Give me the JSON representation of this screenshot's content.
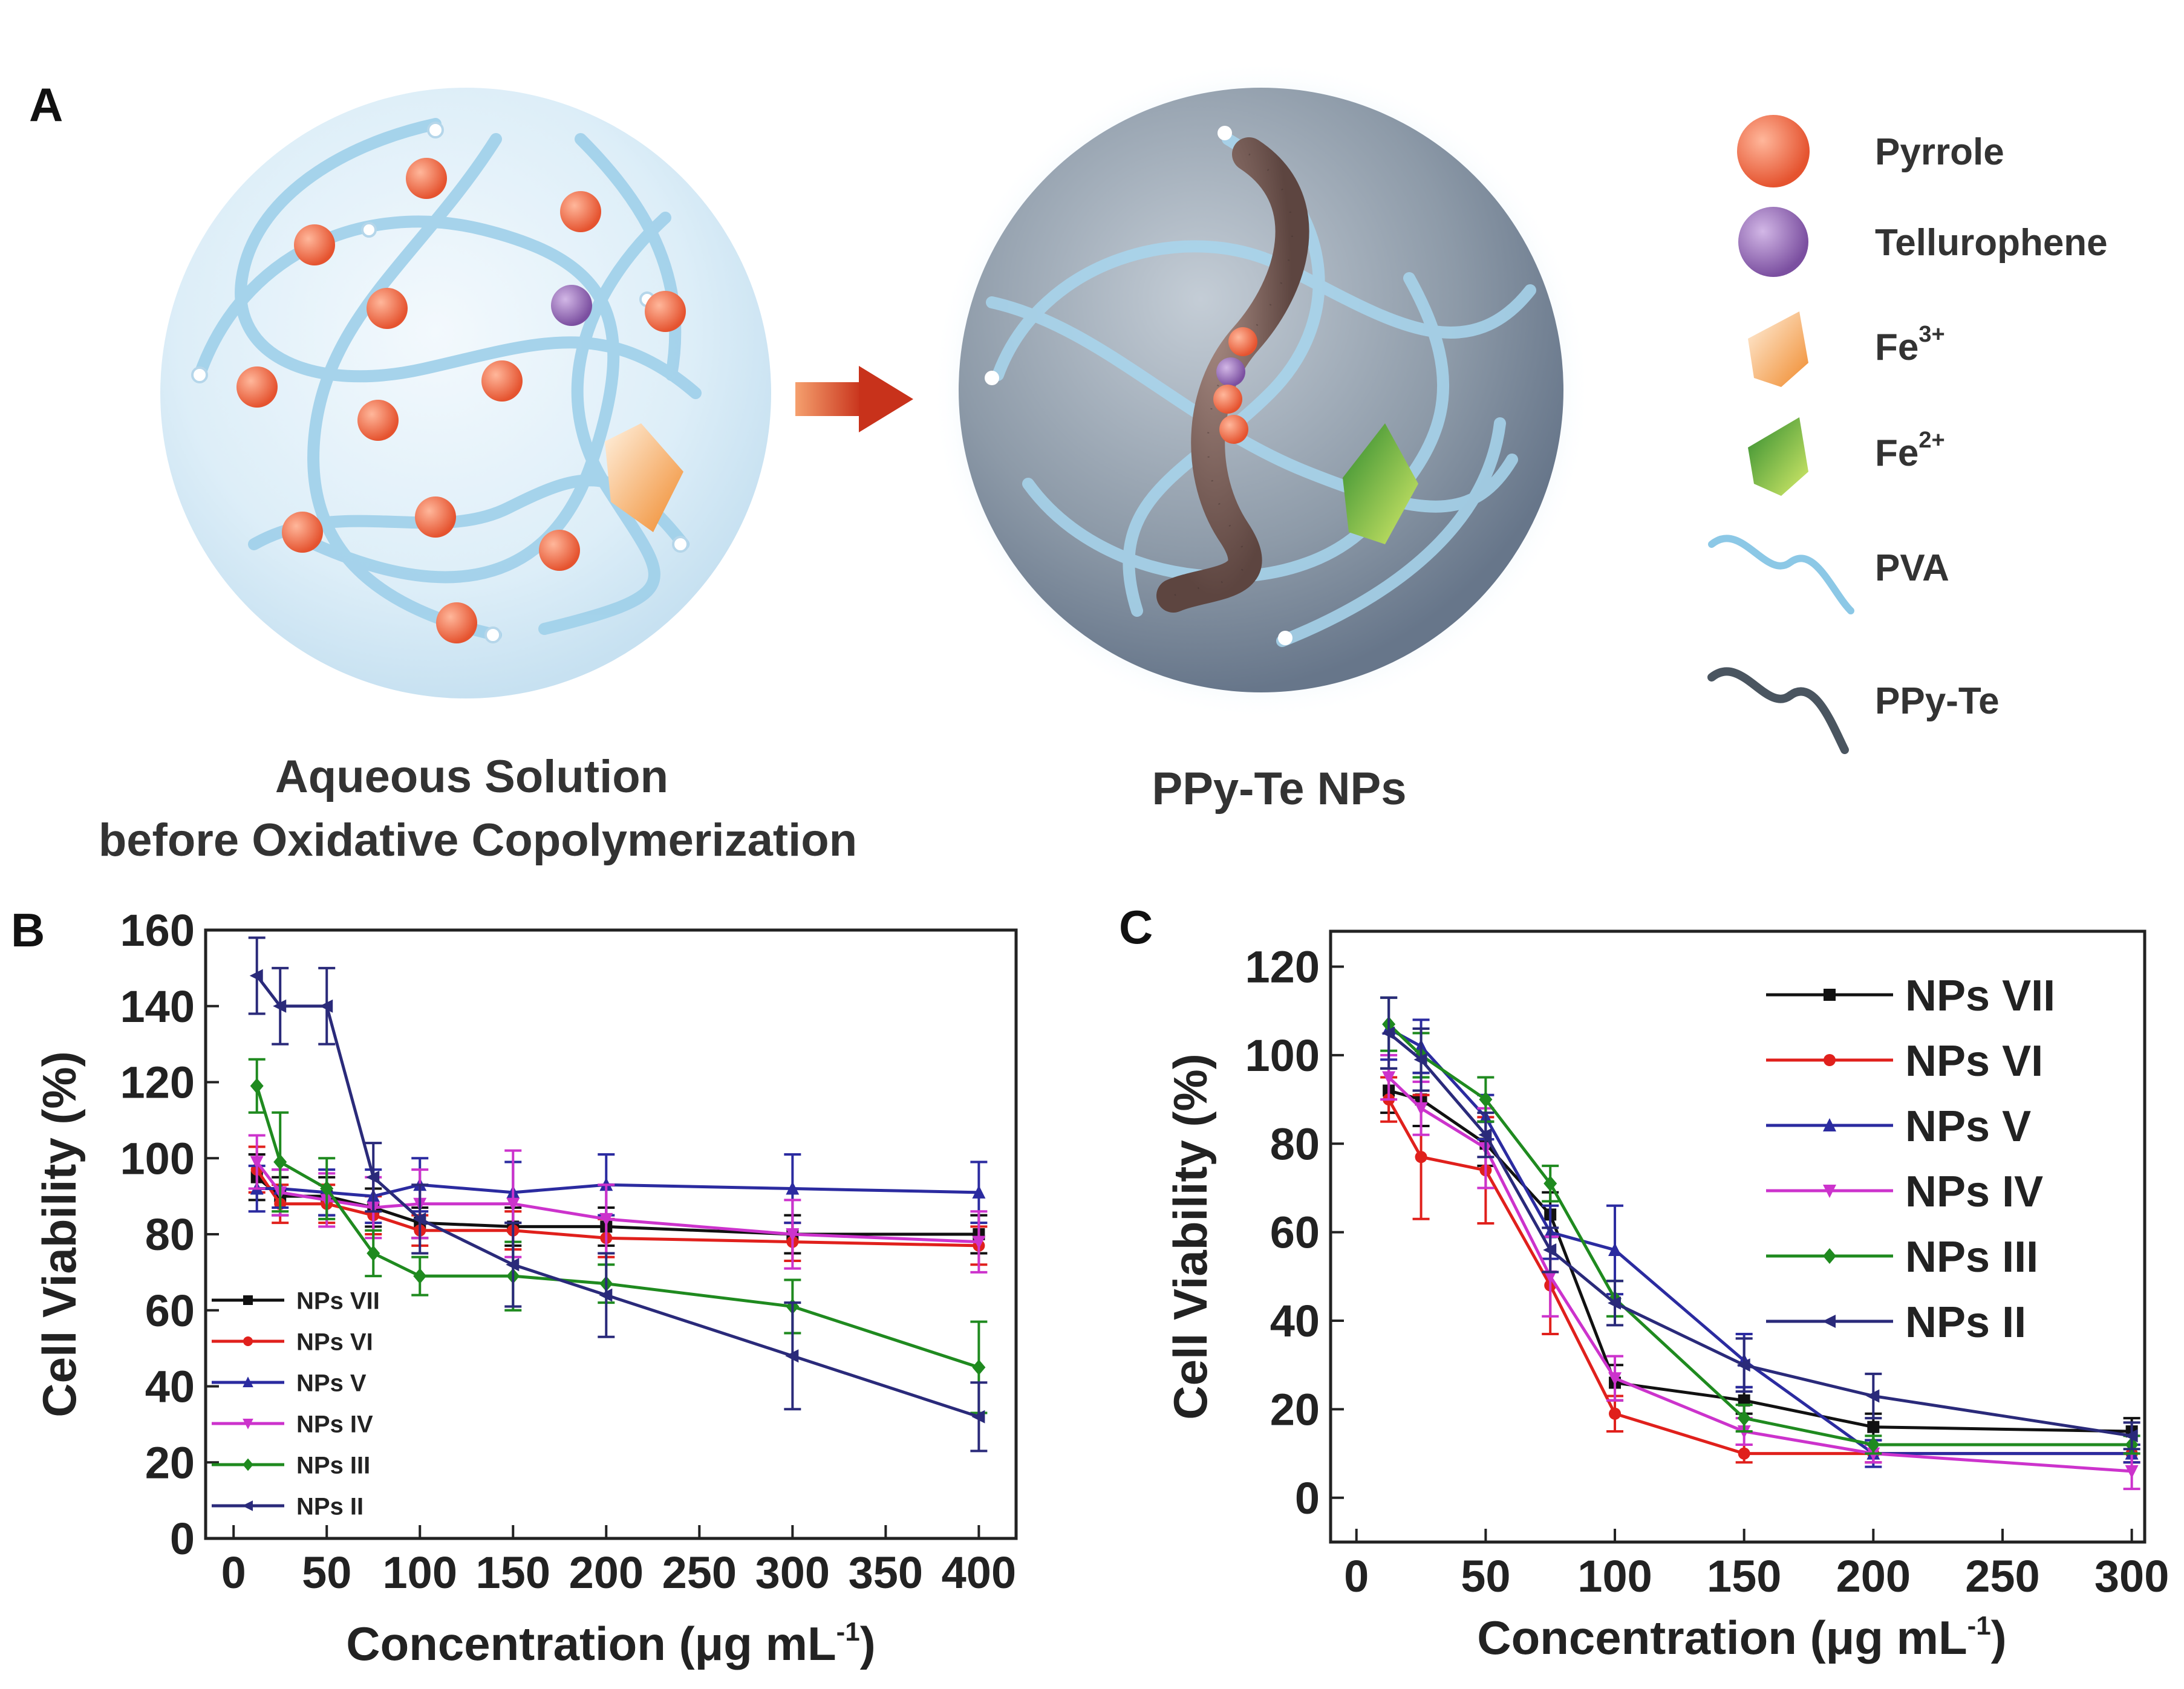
{
  "panels": {
    "a": "A",
    "b": "B",
    "c": "C"
  },
  "schematic": {
    "left_caption_line1": "Aqueous Solution",
    "left_caption_line2": "before Oxidative Copolymerization",
    "right_caption": "PPy-Te NPs",
    "legend": [
      {
        "label": "Pyrrole",
        "sup": "",
        "icon": "orange-sphere-icon",
        "color": "#f0734e"
      },
      {
        "label": "Tellurophene",
        "sup": "",
        "icon": "purple-sphere-icon",
        "color": "#9a6fb8"
      },
      {
        "label": "Fe",
        "sup": "3+",
        "icon": "orange-crystal-icon",
        "color": "#f39a4a"
      },
      {
        "label": "Fe",
        "sup": "2+",
        "icon": "green-crystal-icon",
        "color": "#4caa3a"
      },
      {
        "label": "PVA",
        "sup": "",
        "icon": "blue-chain-icon",
        "color": "#8cc8e6"
      },
      {
        "label": "PPy-Te",
        "sup": "",
        "icon": "grey-chain-icon",
        "color": "#4a5560"
      }
    ]
  },
  "chart_data": [
    {
      "id": "B",
      "type": "line",
      "title": "",
      "xlabel": "Concentration (μg mL",
      "xlabel_sup": "-1",
      "xlabel_end": ")",
      "ylabel": "Cell Viability (%)",
      "xlim": [
        -15,
        420
      ],
      "ylim": [
        0,
        160
      ],
      "xticks": [
        0,
        50,
        100,
        150,
        200,
        250,
        300,
        350,
        400
      ],
      "yticks": [
        0,
        20,
        40,
        60,
        80,
        100,
        120,
        140,
        160
      ],
      "legend_position": "bottom-left",
      "x": [
        12.5,
        25,
        50,
        75,
        100,
        150,
        200,
        300,
        400
      ],
      "series": [
        {
          "name": "NPs VII",
          "color": "#111111",
          "marker": "square",
          "values": [
            95,
            90,
            90,
            87,
            83,
            82,
            82,
            80,
            80
          ],
          "errors": [
            6,
            5,
            5,
            5,
            4,
            5,
            5,
            5,
            5
          ]
        },
        {
          "name": "NPs VI",
          "color": "#e0201c",
          "marker": "circle",
          "values": [
            97,
            88,
            88,
            85,
            81,
            81,
            79,
            78,
            77
          ],
          "errors": [
            6,
            5,
            5,
            5,
            4,
            5,
            5,
            5,
            5
          ]
        },
        {
          "name": "NPs V",
          "color": "#2b2ba0",
          "marker": "triangle-up",
          "values": [
            92,
            92,
            91,
            90,
            93,
            91,
            93,
            92,
            91
          ],
          "errors": [
            6,
            5,
            6,
            7,
            7,
            8,
            8,
            9,
            8
          ]
        },
        {
          "name": "NPs IV",
          "color": "#cc33cc",
          "marker": "triangle-down",
          "values": [
            99,
            91,
            89,
            87,
            88,
            88,
            84,
            80,
            78
          ],
          "errors": [
            7,
            6,
            7,
            8,
            9,
            14,
            9,
            9,
            8
          ]
        },
        {
          "name": "NPs III",
          "color": "#1f8a1f",
          "marker": "diamond",
          "values": [
            119,
            99,
            92,
            75,
            69,
            69,
            67,
            61,
            45
          ],
          "errors": [
            7,
            13,
            8,
            6,
            5,
            9,
            5,
            7,
            12
          ]
        },
        {
          "name": "NPs II",
          "color": "#2a2a7a",
          "marker": "triangle-left",
          "values": [
            148,
            140,
            140,
            95,
            84,
            72,
            64,
            48,
            32
          ],
          "errors": [
            10,
            10,
            10,
            9,
            9,
            11,
            11,
            14,
            9
          ]
        }
      ]
    },
    {
      "id": "C",
      "type": "line",
      "title": "",
      "xlabel": "Concentration (μg mL",
      "xlabel_sup": "-1",
      "xlabel_end": ")",
      "ylabel": "Cell Viability (%)",
      "xlim": [
        -10,
        305
      ],
      "ylim": [
        -10,
        128
      ],
      "xticks": [
        0,
        50,
        100,
        150,
        200,
        250,
        300
      ],
      "yticks": [
        0,
        20,
        40,
        60,
        80,
        100,
        120
      ],
      "legend_position": "top-right",
      "x": [
        12.5,
        25,
        50,
        75,
        100,
        150,
        200,
        300
      ],
      "series": [
        {
          "name": "NPs VII",
          "color": "#111111",
          "marker": "square",
          "values": [
            92,
            90,
            80,
            64,
            26,
            22,
            16,
            15
          ],
          "errors": [
            5,
            6,
            5,
            5,
            4,
            3,
            3,
            3
          ]
        },
        {
          "name": "NPs VI",
          "color": "#e0201c",
          "marker": "circle",
          "values": [
            90,
            77,
            74,
            48,
            19,
            10,
            10,
            10
          ],
          "errors": [
            5,
            14,
            12,
            11,
            4,
            2,
            2,
            2
          ]
        },
        {
          "name": "NPs V",
          "color": "#2b2ba0",
          "marker": "triangle-up",
          "values": [
            106,
            102,
            86,
            60,
            56,
            31,
            10,
            10
          ],
          "errors": [
            7,
            6,
            5,
            6,
            10,
            6,
            3,
            2
          ]
        },
        {
          "name": "NPs IV",
          "color": "#cc33cc",
          "marker": "triangle-down",
          "values": [
            95,
            88,
            79,
            50,
            27,
            15,
            10,
            6
          ],
          "errors": [
            5,
            6,
            9,
            9,
            5,
            3,
            2,
            4
          ]
        },
        {
          "name": "NPs III",
          "color": "#1f8a1f",
          "marker": "diamond",
          "values": [
            107,
            100,
            90,
            71,
            45,
            18,
            12,
            12
          ],
          "errors": [
            6,
            5,
            5,
            4,
            4,
            3,
            2,
            2
          ]
        },
        {
          "name": "NPs II",
          "color": "#2a2a7a",
          "marker": "triangle-left",
          "values": [
            105,
            99,
            82,
            56,
            44,
            30,
            23,
            14
          ],
          "errors": [
            8,
            7,
            5,
            5,
            5,
            6,
            5,
            3
          ]
        }
      ]
    }
  ]
}
